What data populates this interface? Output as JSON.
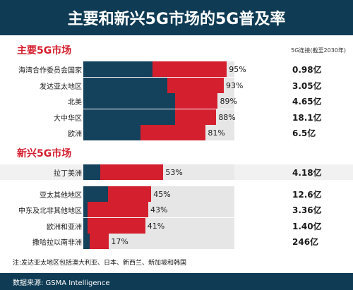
{
  "title": "主要和新兴5G市场的5G普及率",
  "connections_note": "5G连接(截至2030年)",
  "colors": {
    "navy": "#14415c",
    "red": "#d31f2e",
    "title_bg": "#0f3b54"
  },
  "chart_data": {
    "type": "bar",
    "groups": [
      {
        "title": "主要5G市场",
        "rows": [
          {
            "label": "海湾合作委员会国家",
            "value": 95,
            "value_label": "95%",
            "navy_share": 0.48,
            "connections": "0.98亿"
          },
          {
            "label": "发达亚太地区",
            "value": 93,
            "value_label": "93%",
            "navy_share": 0.6,
            "connections": "3.05亿"
          },
          {
            "label": "北美",
            "value": 89,
            "value_label": "89%",
            "navy_share": 0.68,
            "connections": "4.65亿"
          },
          {
            "label": "大中华区",
            "value": 88,
            "value_label": "88%",
            "navy_share": 0.69,
            "connections": "18.1亿"
          },
          {
            "label": "欧洲",
            "value": 81,
            "value_label": "81%",
            "navy_share": 0.47,
            "connections": "6.5亿"
          }
        ]
      },
      {
        "title": "新兴5G市场",
        "rows": [
          {
            "label": "拉丁美洲",
            "value": 53,
            "value_label": "53%",
            "navy_share": 0.21,
            "connections": "4.18亿",
            "highlight": true
          },
          {
            "label": "亚太其他地区",
            "value": 45,
            "value_label": "45%",
            "navy_share": 0.36,
            "connections": "12.6亿"
          },
          {
            "label": "中东及北非其他地区",
            "value": 43,
            "value_label": "43%",
            "navy_share": 0.07,
            "connections": "3.36亿"
          },
          {
            "label": "欧洲和亚洲",
            "value": 41,
            "value_label": "41%",
            "navy_share": 0.07,
            "connections": "1.40亿"
          },
          {
            "label": "撒哈拉以南非洲",
            "value": 17,
            "value_label": "17%",
            "navy_share": 0.25,
            "connections": "246亿"
          }
        ]
      }
    ],
    "xlim": [
      0,
      100
    ]
  },
  "footnote": "注:发达亚太地区包括澳大利亚、日本、新西兰、新加坡和韩国",
  "source": "数据来源: GSMA Intelligence"
}
